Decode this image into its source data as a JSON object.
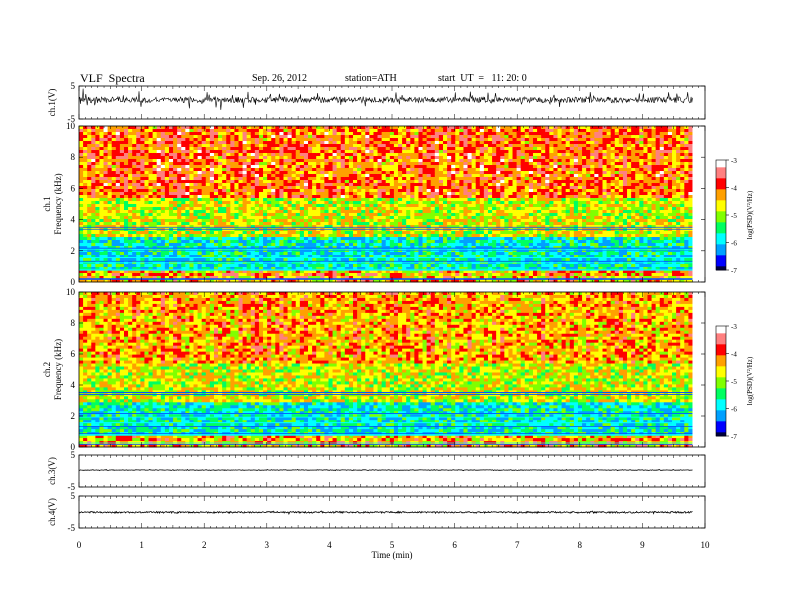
{
  "header": {
    "title": "VLF  Spectra",
    "date": "Sep. 26, 2012",
    "station": "station=ATH",
    "start_ut": "start  UT  =   11: 20: 0"
  },
  "chart_data": [
    {
      "type": "line",
      "ylabel": "ch.1(V)",
      "ylim": [
        -5,
        5
      ],
      "yticks": [
        "5",
        "-5"
      ],
      "description_level": 0
    },
    {
      "type": "heatmap",
      "ylabel_top": "ch.1",
      "ylabel": "Frequency  (kHz)",
      "ylim": [
        0,
        10
      ],
      "yticks": [
        "0",
        "2",
        "4",
        "6",
        "8",
        "10"
      ],
      "colorbar": {
        "label": "log(PSD)(V²/Hz)",
        "range": [
          -7,
          -3
        ],
        "ticks": [
          "-7",
          "-6",
          "-5",
          "-4",
          "-3"
        ]
      }
    },
    {
      "type": "heatmap",
      "ylabel_top": "ch.2",
      "ylabel": "Frequency  (kHz)",
      "ylim": [
        0,
        10
      ],
      "yticks": [
        "0",
        "2",
        "4",
        "6",
        "8",
        "10"
      ],
      "colorbar": {
        "label": "log(PSD)(V²/Hz)",
        "range": [
          -7,
          -3
        ],
        "ticks": [
          "-7",
          "-6",
          "-5",
          "-4",
          "-3"
        ]
      }
    },
    {
      "type": "line",
      "ylabel": "ch.3(V)",
      "ylim": [
        -5,
        5
      ],
      "yticks": [
        "5",
        "-5"
      ]
    },
    {
      "type": "line",
      "ylabel": "ch.4(V)",
      "ylim": [
        -5,
        5
      ],
      "yticks": [
        "5",
        "-5"
      ]
    }
  ],
  "x_axis": {
    "label": "Time  (min)",
    "range": [
      0,
      10
    ],
    "ticks": [
      "0",
      "1",
      "2",
      "3",
      "4",
      "5",
      "6",
      "7",
      "8",
      "9",
      "10"
    ],
    "data_end": 9.8
  },
  "colors": {
    "scale": [
      "#000040",
      "#0000ff",
      "#00a0ff",
      "#00ffff",
      "#00ff60",
      "#80ff00",
      "#ffff00",
      "#ffa000",
      "#ff0000",
      "#ff8080",
      "#ffffff"
    ]
  }
}
